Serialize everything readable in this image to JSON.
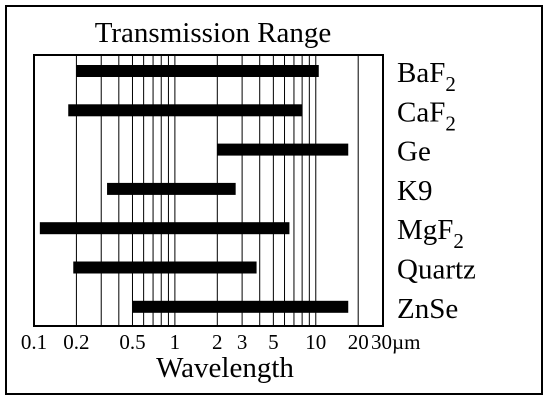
{
  "chart_data": {
    "type": "bar",
    "title": "Transmission Range",
    "xlabel": "Wavelength",
    "x_scale": "log",
    "xlim": [
      0.1,
      30
    ],
    "grid": true,
    "ticks": [
      {
        "value": 0.1,
        "label": "0.1"
      },
      {
        "value": 0.2,
        "label": "0.2"
      },
      {
        "value": 0.5,
        "label": "0.5"
      },
      {
        "value": 1,
        "label": "1"
      },
      {
        "value": 2,
        "label": "2"
      },
      {
        "value": 3,
        "label": "3"
      },
      {
        "value": 5,
        "label": "5"
      },
      {
        "value": 10,
        "label": "10"
      },
      {
        "value": 20,
        "label": "20"
      },
      {
        "value": 30,
        "label": "30µm"
      }
    ],
    "gridlines": [
      0.2,
      0.3,
      0.4,
      0.5,
      0.6,
      0.7,
      0.8,
      0.9,
      1,
      2,
      3,
      4,
      5,
      6,
      7,
      8,
      9,
      10,
      20
    ],
    "materials": [
      {
        "name": "BaF",
        "subscript": "2",
        "range": [
          0.2,
          10.5
        ]
      },
      {
        "name": "CaF",
        "subscript": "2",
        "range": [
          0.175,
          8
        ]
      },
      {
        "name": "Ge",
        "subscript": "",
        "range": [
          2,
          17
        ]
      },
      {
        "name": "K9",
        "subscript": "",
        "range": [
          0.33,
          2.7
        ]
      },
      {
        "name": "MgF",
        "subscript": "2",
        "range": [
          0.11,
          6.5
        ]
      },
      {
        "name": "Quartz",
        "subscript": "",
        "range": [
          0.19,
          3.8
        ]
      },
      {
        "name": "ZnSe",
        "subscript": "",
        "range": [
          0.5,
          17
        ]
      }
    ]
  }
}
